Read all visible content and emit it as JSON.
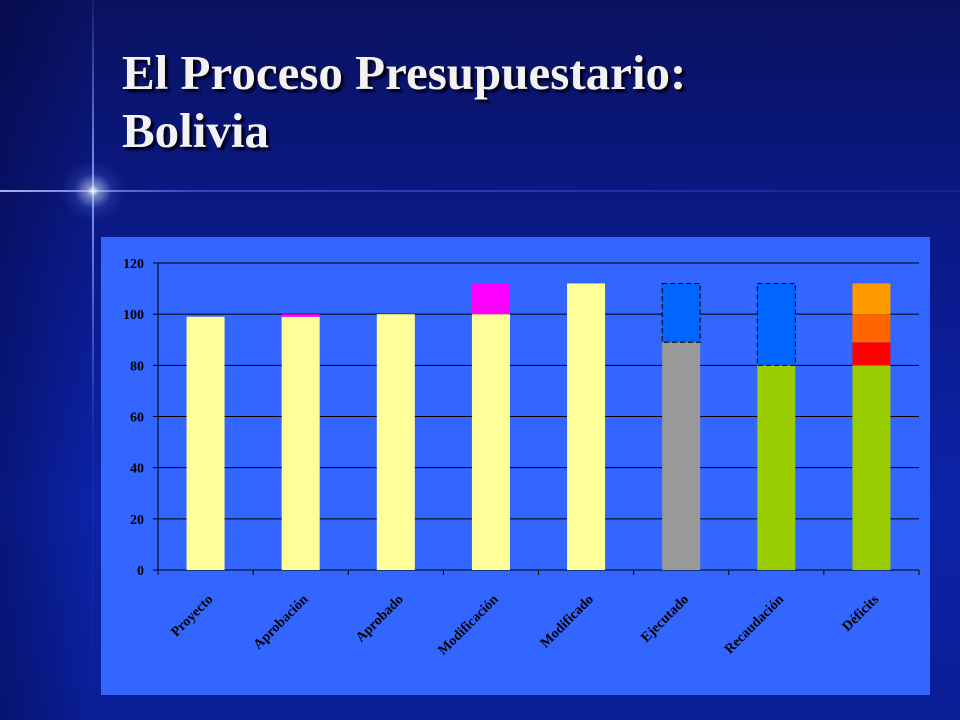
{
  "slide": {
    "title_line1": "El Proceso Presupuestario:",
    "title_line2": "Bolivia"
  },
  "chart_data": {
    "type": "bar",
    "stacked": true,
    "title": "",
    "xlabel": "",
    "ylabel": "",
    "ylim": [
      0,
      120
    ],
    "yticks": [
      0,
      20,
      40,
      60,
      80,
      100,
      120
    ],
    "grid": true,
    "legend": "none",
    "categories": [
      "Proyecto",
      "Aprobación",
      "Aprobado",
      "Modificación",
      "Modificado",
      "Ejecutado",
      "Recaudación",
      "Déficits"
    ],
    "bars": [
      [
        {
          "value": 99,
          "color": "#ffff99"
        }
      ],
      [
        {
          "value": 99,
          "color": "#ffff99"
        },
        {
          "value": 1,
          "color": "#ff00ff"
        }
      ],
      [
        {
          "value": 100,
          "color": "#ffff99"
        }
      ],
      [
        {
          "value": 100,
          "color": "#ffff99"
        },
        {
          "value": 12,
          "color": "#ff00ff"
        }
      ],
      [
        {
          "value": 112,
          "color": "#ffff99"
        }
      ],
      [
        {
          "value": 89,
          "color": "#999999"
        },
        {
          "value": 23,
          "color": "#0066ff",
          "dashed": true
        }
      ],
      [
        {
          "value": 80,
          "color": "#99cc00"
        },
        {
          "value": 32,
          "color": "#0066ff",
          "dashed": true
        }
      ],
      [
        {
          "value": 80,
          "color": "#99cc00"
        },
        {
          "value": 9,
          "color": "#ff0000"
        },
        {
          "value": 11,
          "color": "#ff6600"
        },
        {
          "value": 12,
          "color": "#ff9900"
        }
      ]
    ]
  }
}
